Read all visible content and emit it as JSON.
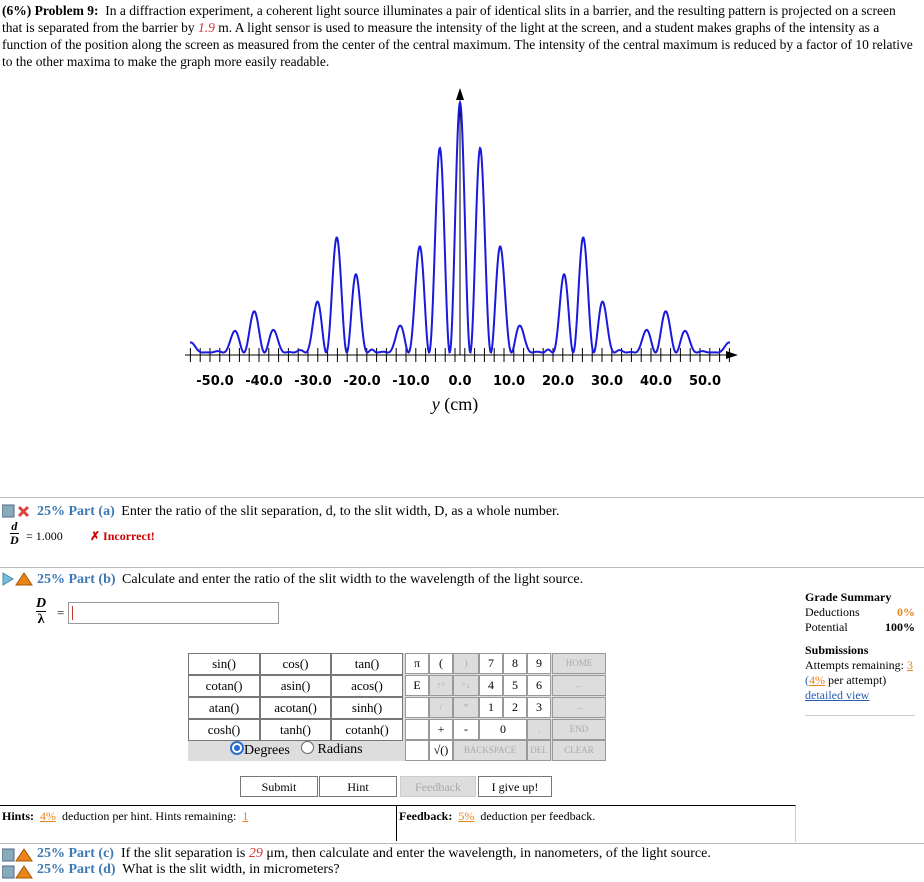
{
  "problem": {
    "label": "(6%) Problem 9:",
    "text_1": "In a diffraction experiment, a coherent light source illuminates a pair of identical slits in a barrier, and the resulting pattern is projected on a screen that is separated from the barrier by",
    "distance": "1.9",
    "text_2": "m. A light sensor is used to measure the intensity of the light at the screen, and a student makes graphs of the intensity as a function of the position along the screen as measured from the center of the central maximum. The intensity of the central maximum is reduced by a factor of 10 relative to the other maxima to make the graph more easily readable."
  },
  "figure": {
    "xticks": [
      "-50.0",
      "-40.0",
      "-30.0",
      "-20.0",
      "-10.0",
      "0.0",
      "10.0",
      "20.0",
      "30.0",
      "40.0",
      "50.0"
    ],
    "xlabel_var": "y",
    "xlabel_unit": "(cm)"
  },
  "part_a": {
    "label": "25% Part (a)",
    "text": "Enter the ratio of the slit separation, d, to the slit width, D, as a whole number.",
    "frac_num": "d",
    "frac_den": "D",
    "answer": "= 1.000",
    "status": "✗ Incorrect!"
  },
  "part_b": {
    "label": "25% Part (b)",
    "text": "Calculate and enter the ratio of the slit width to the wavelength of the light source.",
    "frac_num": "D",
    "frac_den": "λ",
    "equals": "="
  },
  "grade_summary": {
    "title": "Grade Summary",
    "deductions_label": "Deductions",
    "deductions": "0%",
    "potential_label": "Potential",
    "potential": "100%",
    "submissions_title": "Submissions",
    "attempts_label": "Attempts remaining:",
    "attempts": "3",
    "per_attempt_open": "(",
    "per_attempt": "4%",
    "per_attempt_text": "per attempt)",
    "detailed_view": "detailed view"
  },
  "keypad": {
    "functions": [
      "sin()",
      "cos()",
      "tan()",
      "cotan()",
      "asin()",
      "acos()",
      "atan()",
      "acotan()",
      "sinh()",
      "cosh()",
      "tanh()",
      "cotanh()"
    ],
    "degrees": "Degrees",
    "radians": "Radians",
    "keys": [
      "π",
      "(",
      ")",
      "7",
      "8",
      "9",
      "HOME",
      "E",
      "↑^",
      "^↓",
      "4",
      "5",
      "6",
      "←",
      "/",
      "*",
      "1",
      "2",
      "3",
      "→",
      "+",
      "-",
      "0",
      ".",
      "END",
      "√()",
      "BACKSPACE",
      "DEL",
      "CLEAR"
    ]
  },
  "buttons": {
    "submit": "Submit",
    "hint": "Hint",
    "feedback": "Feedback",
    "give_up": "I give up!"
  },
  "hints": {
    "label": "Hints:",
    "percent": "4%",
    "text": "deduction per hint. Hints remaining:",
    "remaining": "1"
  },
  "feedback": {
    "label": "Feedback:",
    "percent": "5%",
    "text": "deduction per feedback."
  },
  "part_c": {
    "label": "25% Part (c)",
    "text_1": "If the slit separation is",
    "value": "29",
    "text_2": "μm, then calculate and enter the wavelength, in nanometers, of the light source."
  },
  "part_d": {
    "label": "25% Part (d)",
    "text": "What is the slit width, in micrometers?"
  }
}
